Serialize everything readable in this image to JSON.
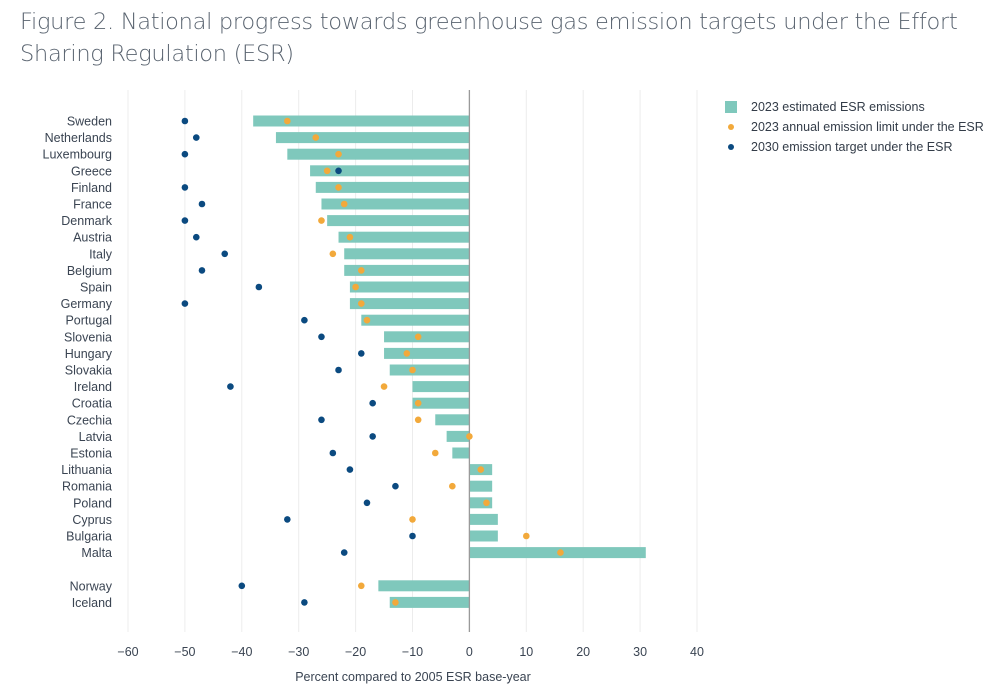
{
  "title": "Figure 2. National progress towards greenhouse gas emission targets under the Effort Sharing Regulation (ESR)",
  "colors": {
    "bar": "#7fc8bc",
    "limit": "#f2a93b",
    "target": "#0b4a80",
    "zero_line": "#9a9a9a",
    "grid": "#ececec"
  },
  "chart_data": {
    "type": "bar",
    "orientation": "horizontal",
    "title": "Figure 2. National progress towards greenhouse gas emission targets under the Effort Sharing Regulation (ESR)",
    "xlabel": "Percent compared to 2005 ESR base-year",
    "ylabel": "",
    "xlim": [
      -60,
      40
    ],
    "xticks": [
      -60,
      -50,
      -40,
      -30,
      -20,
      -10,
      0,
      10,
      20,
      30,
      40
    ],
    "xtick_labels": [
      "−60",
      "−50",
      "−40",
      "−30",
      "−20",
      "−10",
      "0",
      "10",
      "20",
      "30",
      "40"
    ],
    "grid": true,
    "legend_position": "top-right",
    "legend": [
      {
        "name": "2023 estimated ESR emissions",
        "kind": "bar"
      },
      {
        "name": "2023 annual emission limit under the ESR",
        "kind": "dot-limit"
      },
      {
        "name": "2030 emission target under the ESR",
        "kind": "dot-target"
      }
    ],
    "categories": [
      "Sweden",
      "Netherlands",
      "Luxembourg",
      "Greece",
      "Finland",
      "France",
      "Denmark",
      "Austria",
      "Italy",
      "Belgium",
      "Spain",
      "Germany",
      "Portugal",
      "Slovenia",
      "Hungary",
      "Slovakia",
      "Ireland",
      "Croatia",
      "Czechia",
      "Latvia",
      "Estonia",
      "Lithuania",
      "Romania",
      "Poland",
      "Cyprus",
      "Bulgaria",
      "Malta",
      "",
      "Norway",
      "Iceland"
    ],
    "series": [
      {
        "name": "2023 estimated ESR emissions",
        "type": "bar",
        "values": [
          -38,
          -34,
          -32,
          -28,
          -27,
          -26,
          -25,
          -23,
          -22,
          -22,
          -21,
          -21,
          -19,
          -15,
          -15,
          -14,
          -10,
          -10,
          -6,
          -4,
          -3,
          4,
          4,
          4,
          5,
          5,
          31,
          null,
          -16,
          -14
        ]
      },
      {
        "name": "2023 annual emission limit under the ESR",
        "type": "scatter",
        "values": [
          -32,
          -27,
          -23,
          -25,
          -23,
          -22,
          -26,
          -21,
          -24,
          -19,
          -20,
          -19,
          -18,
          -9,
          -11,
          -10,
          -15,
          -9,
          -9,
          0,
          -6,
          2,
          -3,
          3,
          -10,
          10,
          16,
          null,
          -19,
          -13
        ]
      },
      {
        "name": "2030 emission target under the ESR",
        "type": "scatter",
        "values": [
          -50,
          -48,
          -50,
          -23,
          -50,
          -47,
          -50,
          -48,
          -43,
          -47,
          -37,
          -50,
          -29,
          -26,
          -19,
          -23,
          -42,
          -17,
          -26,
          -17,
          -24,
          -21,
          -13,
          -18,
          -32,
          -10,
          -22,
          null,
          -40,
          -29
        ]
      }
    ]
  }
}
